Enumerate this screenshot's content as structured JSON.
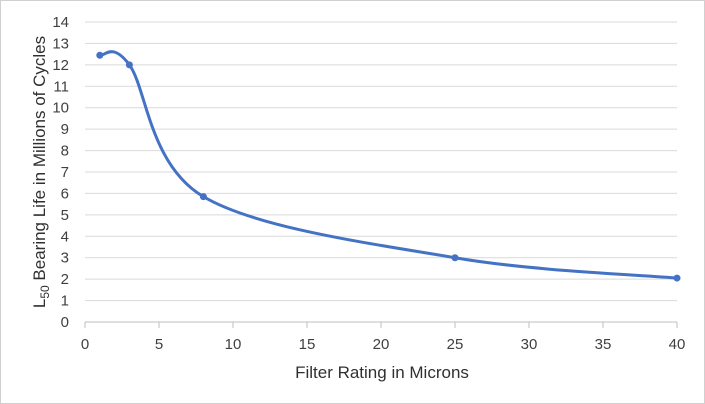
{
  "chart_data": {
    "type": "line",
    "title": "",
    "xlabel": "Filter Rating in Microns",
    "ylabel": {
      "prefix": "L",
      "subscript": "50",
      "rest": " Bearing Life in Millions of Cycles"
    },
    "xlim": [
      0,
      40
    ],
    "ylim": [
      0,
      14
    ],
    "xticks": [
      0,
      5,
      10,
      15,
      20,
      25,
      30,
      35,
      40
    ],
    "yticks": [
      0,
      1,
      2,
      3,
      4,
      5,
      6,
      7,
      8,
      9,
      10,
      11,
      12,
      13,
      14
    ],
    "grid": true,
    "legend": "none",
    "series": [
      {
        "color": "#4472c4",
        "smooth": true,
        "points": [
          {
            "x": 1,
            "y": 12.45
          },
          {
            "x": 3,
            "y": 12.0
          },
          {
            "x": 8,
            "y": 5.85
          },
          {
            "x": 25,
            "y": 3.0
          },
          {
            "x": 40,
            "y": 2.05
          }
        ]
      }
    ]
  }
}
